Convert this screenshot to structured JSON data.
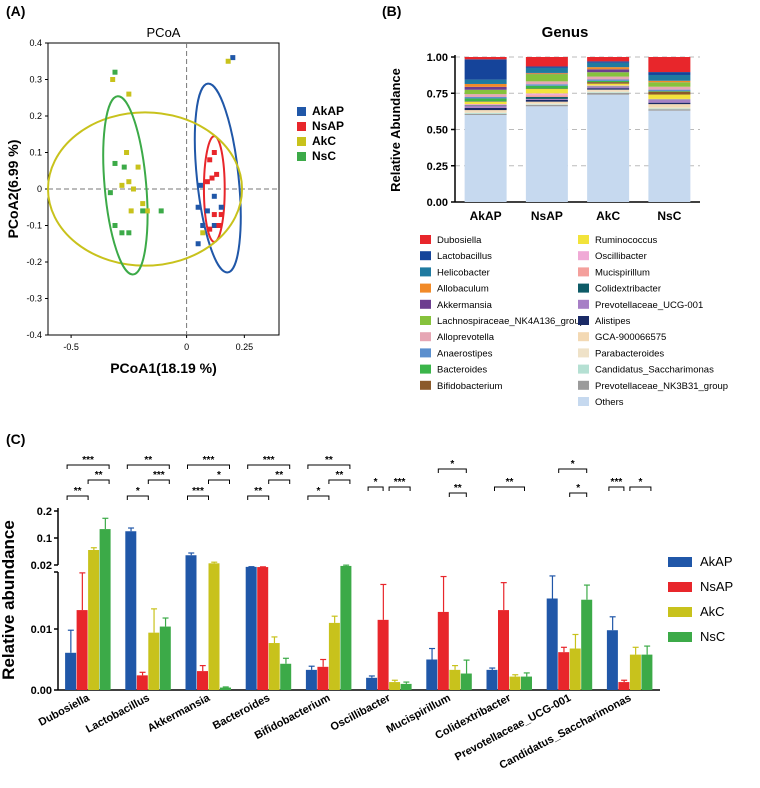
{
  "colors": {
    "AkAP": "#2057a8",
    "NsAP": "#e8262b",
    "AkC": "#c8c21c",
    "NsC": "#3caa48"
  },
  "chart_data": [
    {
      "panel": "(A)",
      "type": "scatter",
      "title": "PCoA",
      "xlabel": "PCoA1(18.19 %)",
      "ylabel": "PCoA2(6.99 %)",
      "xlim": [
        -0.6,
        0.4
      ],
      "ylim": [
        -0.4,
        0.4
      ],
      "xticks": [
        -0.5,
        0,
        0.25
      ],
      "xtick_labels": [
        "-0.5",
        "0",
        "0.25"
      ],
      "yticks": [
        0.4,
        0.3,
        0.2,
        0.1,
        0,
        -0.1,
        -0.2,
        -0.3,
        -0.4
      ],
      "ytick_labels": [
        "0.4",
        "0.3",
        "0.2",
        "0.1",
        "0",
        "-0.1",
        "-0.2",
        "-0.3",
        "-0.4"
      ],
      "legend_position": "right",
      "series": [
        {
          "name": "AkAP",
          "points": [
            [
              0.2,
              0.36
            ],
            [
              0.05,
              -0.05
            ],
            [
              0.06,
              0.01
            ],
            [
              0.09,
              -0.06
            ],
            [
              0.07,
              -0.1
            ],
            [
              0.15,
              -0.05
            ],
            [
              0.12,
              -0.1
            ],
            [
              0.05,
              -0.15
            ],
            [
              0.12,
              -0.02
            ]
          ]
        },
        {
          "name": "NsAP",
          "points": [
            [
              0.1,
              0.08
            ],
            [
              0.12,
              0.1
            ],
            [
              0.11,
              0.03
            ],
            [
              0.13,
              0.04
            ],
            [
              0.09,
              0.02
            ],
            [
              0.12,
              -0.07
            ],
            [
              0.15,
              -0.07
            ],
            [
              0.14,
              -0.1
            ],
            [
              0.1,
              -0.11
            ]
          ]
        },
        {
          "name": "AkC",
          "points": [
            [
              0.18,
              0.35
            ],
            [
              -0.26,
              0.1
            ],
            [
              -0.21,
              0.06
            ],
            [
              -0.23,
              0.0
            ],
            [
              -0.25,
              0.02
            ],
            [
              -0.24,
              -0.06
            ],
            [
              -0.17,
              -0.06
            ],
            [
              -0.19,
              -0.04
            ],
            [
              -0.28,
              0.01
            ],
            [
              -0.32,
              0.3
            ],
            [
              -0.25,
              0.26
            ],
            [
              0.07,
              -0.12
            ]
          ]
        },
        {
          "name": "NsC",
          "points": [
            [
              -0.31,
              0.32
            ],
            [
              -0.31,
              0.07
            ],
            [
              -0.27,
              0.06
            ],
            [
              -0.33,
              -0.01
            ],
            [
              -0.28,
              -0.12
            ],
            [
              -0.25,
              -0.12
            ],
            [
              -0.11,
              -0.06
            ],
            [
              -0.19,
              -0.06
            ],
            [
              -0.31,
              -0.1
            ]
          ]
        }
      ],
      "ellipses": [
        {
          "group": "AkAP",
          "cx": 0.135,
          "cy": 0.03,
          "rx": 0.09,
          "ry": 0.26,
          "rotate": -6
        },
        {
          "group": "NsAP",
          "cx": 0.12,
          "cy": 0.0,
          "rx": 0.045,
          "ry": 0.145,
          "rotate": 0
        },
        {
          "group": "AkC",
          "cx": -0.18,
          "cy": 0.0,
          "rx": 0.42,
          "ry": 0.21,
          "rotate": 0
        },
        {
          "group": "NsC",
          "cx": -0.265,
          "cy": 0.01,
          "rx": 0.09,
          "ry": 0.245,
          "rotate": -5
        }
      ]
    },
    {
      "panel": "(B)",
      "type": "bar",
      "subtype": "stacked",
      "title": "Genus",
      "ylabel": "Relative Abundance",
      "ylim": [
        0,
        1
      ],
      "yticks": [
        0,
        0.25,
        0.5,
        0.75,
        1
      ],
      "ytick_labels": [
        "0.00",
        "0.25",
        "0.50",
        "0.75",
        "1.00"
      ],
      "categories": [
        "AkAP",
        "NsAP",
        "AkC",
        "NsC"
      ],
      "legend_position": "bottom",
      "series": [
        {
          "name": "Others",
          "color": "#c6d9ef",
          "values": [
            0.6,
            0.66,
            0.74,
            0.63
          ]
        },
        {
          "name": "Prevotellaceae_NK3B31_group",
          "color": "#9b9b9b",
          "values": [
            0.008,
            0.01,
            0.012,
            0.01
          ]
        },
        {
          "name": "Candidatus_Saccharimonas",
          "color": "#b5e0d3",
          "values": [
            0.006,
            0.004,
            0.005,
            0.005
          ]
        },
        {
          "name": "Parabacteroides",
          "color": "#efe2c8",
          "values": [
            0.01,
            0.008,
            0.01,
            0.01
          ]
        },
        {
          "name": "GCA-900066575",
          "color": "#f3d9b4",
          "values": [
            0.01,
            0.01,
            0.008,
            0.02
          ]
        },
        {
          "name": "Alistipes",
          "color": "#1a2a66",
          "values": [
            0.015,
            0.012,
            0.01,
            0.01
          ]
        },
        {
          "name": "Prevotellaceae_UCG-001",
          "color": "#a77fc6",
          "values": [
            0.015,
            0.007,
            0.01,
            0.018
          ]
        },
        {
          "name": "Colidextribacter",
          "color": "#0e5b67",
          "values": [
            0.004,
            0.013,
            0.003,
            0.003
          ]
        },
        {
          "name": "Mucispirillum",
          "color": "#f4a09c",
          "values": [
            0.005,
            0.013,
            0.004,
            0.003
          ]
        },
        {
          "name": "Oscillibacter",
          "color": "#f0aad6",
          "values": [
            0.003,
            0.012,
            0.002,
            0.002
          ]
        },
        {
          "name": "Ruminococcus",
          "color": "#f2e33b",
          "values": [
            0.015,
            0.03,
            0.012,
            0.03
          ]
        },
        {
          "name": "Bifidobacterium",
          "color": "#8b5a2b",
          "values": [
            0.003,
            0.003,
            0.011,
            0.02
          ]
        },
        {
          "name": "Bacteroides",
          "color": "#3bb54a",
          "values": [
            0.02,
            0.02,
            0.008,
            0.004
          ]
        },
        {
          "name": "Anaerostipes",
          "color": "#5b8fce",
          "values": [
            0.01,
            0.01,
            0.01,
            0.01
          ]
        },
        {
          "name": "Alloprevotella",
          "color": "#e6a6b4",
          "values": [
            0.02,
            0.02,
            0.02,
            0.02
          ]
        },
        {
          "name": "Lachnospiraceae_NK4A136_group",
          "color": "#86c23c",
          "values": [
            0.03,
            0.05,
            0.03,
            0.03
          ]
        },
        {
          "name": "Akkermansia",
          "color": "#6c3d8f",
          "values": [
            0.02,
            0.003,
            0.02,
            0.001
          ]
        },
        {
          "name": "Allobaculum",
          "color": "#f18a28",
          "values": [
            0.02,
            0.005,
            0.015,
            0.01
          ]
        },
        {
          "name": "Helicobacter",
          "color": "#1f7aa0",
          "values": [
            0.03,
            0.035,
            0.03,
            0.04
          ]
        },
        {
          "name": "Lactobacillus",
          "color": "#15449a",
          "values": [
            0.14,
            0.01,
            0.01,
            0.02
          ]
        },
        {
          "name": "Dubosiella",
          "color": "#e8262b",
          "values": [
            0.01,
            0.012,
            0.06,
            0.13
          ]
        }
      ],
      "legend_left": [
        "Dubosiella",
        "Lactobacillus",
        "Helicobacter",
        "Allobaculum",
        "Akkermansia",
        "Lachnospiraceae_NK4A136_group",
        "Alloprevotella",
        "Anaerostipes",
        "Bacteroides",
        "Bifidobacterium"
      ],
      "legend_right": [
        "Ruminococcus",
        "Oscillibacter",
        "Mucispirillum",
        "Colidextribacter",
        "Prevotellaceae_UCG-001",
        "Alistipes",
        "GCA-900066575",
        "Parabacteroides",
        "Candidatus_Saccharimonas",
        "Prevotellaceae_NK3B31_group",
        "Others"
      ]
    },
    {
      "panel": "(C)",
      "type": "bar",
      "subtype": "grouped",
      "ylabel": "Relative abundance",
      "yscale": "segmented",
      "ytick_labels": [
        "0.00",
        "0.01",
        "0.02",
        "0.1",
        "0.2"
      ],
      "legend_position": "right",
      "categories": [
        "Dubosiella",
        "Lactobacillus",
        "Akkermansia",
        "Bacteroides",
        "Bifidobacterium",
        "Oscillibacter",
        "Mucispirillum",
        "Colidextribacter",
        "Prevotellaceae_UCG-001",
        "Candidatus_Saccharimonas"
      ],
      "series": [
        {
          "name": "AkAP",
          "values": [
            0.0061,
            0.125,
            0.054,
            0.023,
            0.0033,
            0.002,
            0.005,
            0.0033,
            0.015,
            0.0098
          ],
          "errors": [
            0.0037,
            0.012,
            0.006,
            0.0005,
            0.0006,
            0.0003,
            0.0018,
            0.0003,
            0.0037,
            0.0022
          ]
        },
        {
          "name": "NsAP",
          "values": [
            0.0131,
            0.0024,
            0.0031,
            0.0225,
            0.0038,
            0.0115,
            0.0128,
            0.0131,
            0.0062,
            0.0013
          ],
          "errors": [
            0.0061,
            0.0005,
            0.0009,
            0.0006,
            0.0012,
            0.0058,
            0.0058,
            0.0045,
            0.0008,
            0.0003
          ]
        },
        {
          "name": "AkC",
          "values": [
            0.068,
            0.0094,
            0.0325,
            0.0077,
            0.011,
            0.0013,
            0.0033,
            0.0022,
            0.0068,
            0.0058
          ],
          "errors": [
            0.006,
            0.0039,
            0.003,
            0.001,
            0.0011,
            0.0003,
            0.0007,
            0.0003,
            0.0023,
            0.0012
          ]
        },
        {
          "name": "NsC",
          "values": [
            0.133,
            0.0104,
            0.0004,
            0.0043,
            0.0255,
            0.001,
            0.0027,
            0.0022,
            0.0148,
            0.0058
          ],
          "errors": [
            0.04,
            0.0014,
            0.0001,
            0.0009,
            0.0021,
            0.0003,
            0.0022,
            0.0006,
            0.0024,
            0.0014
          ]
        }
      ],
      "significance": [
        {
          "category": "Dubosiella",
          "labels": [
            "***",
            "**",
            "**"
          ]
        },
        {
          "category": "Lactobacillus",
          "labels": [
            "**",
            "***",
            "*"
          ]
        },
        {
          "category": "Akkermansia",
          "labels": [
            "***",
            "*",
            "***"
          ]
        },
        {
          "category": "Bacteroides",
          "labels": [
            "***",
            "**",
            "**"
          ]
        },
        {
          "category": "Bifidobacterium",
          "labels": [
            "**",
            "**",
            "*"
          ]
        },
        {
          "category": "Oscillibacter",
          "labels": [
            "*",
            "***"
          ]
        },
        {
          "category": "Mucispirillum",
          "labels": [
            "*",
            "**"
          ]
        },
        {
          "category": "Colidextribacter",
          "labels": [
            "**"
          ]
        },
        {
          "category": "Prevotellaceae_UCG-001",
          "labels": [
            "*",
            "*"
          ]
        },
        {
          "category": "Candidatus_Saccharimonas",
          "labels": [
            "***",
            "*"
          ]
        }
      ]
    }
  ]
}
